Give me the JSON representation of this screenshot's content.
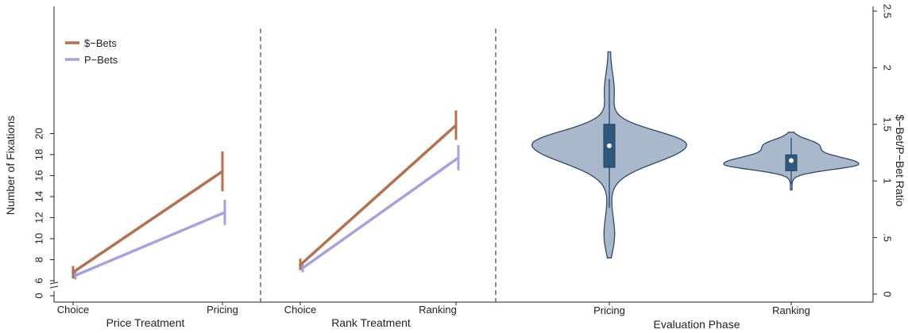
{
  "chart_data": [
    {
      "type": "line",
      "xlabel": "Price Treatment",
      "ylabel": "Number of Fixations",
      "categories": [
        "Choice",
        "Pricing"
      ],
      "ylim": [
        0,
        22
      ],
      "y_axis_break": true,
      "y_ticks": [
        0,
        6,
        8,
        10,
        12,
        14,
        16,
        18,
        20
      ],
      "series": [
        {
          "name": "$−Bets",
          "color": "#b5714c",
          "values": [
            6.8,
            16.4
          ],
          "ci_low": [
            6.2,
            14.5
          ],
          "ci_high": [
            7.4,
            18.3
          ]
        },
        {
          "name": "P−Bets",
          "color": "#a8a0e0",
          "values": [
            6.5,
            12.5
          ],
          "ci_low": [
            6.1,
            11.3
          ],
          "ci_high": [
            6.9,
            13.7
          ]
        }
      ],
      "legend": "top-left"
    },
    {
      "type": "line",
      "xlabel": "Rank Treatment",
      "categories": [
        "Choice",
        "Ranking"
      ],
      "ylim": [
        0,
        22
      ],
      "series": [
        {
          "name": "$−Bets",
          "color": "#b5714c",
          "values": [
            7.5,
            20.8
          ],
          "ci_low": [
            7.0,
            19.4
          ],
          "ci_high": [
            8.1,
            22.2
          ]
        },
        {
          "name": "P−Bets",
          "color": "#a8a0e0",
          "values": [
            7.2,
            17.7
          ],
          "ci_low": [
            6.8,
            16.5
          ],
          "ci_high": [
            7.7,
            18.9
          ]
        }
      ]
    },
    {
      "type": "violin",
      "xlabel": "Evaluation Phase",
      "ylabel": "$−Bet/P−Bet Ratio",
      "categories": [
        "Pricing",
        "Ranking"
      ],
      "ylim": [
        0,
        2.5
      ],
      "y_ticks": [
        0,
        0.5,
        1,
        1.5,
        2,
        2.5
      ],
      "y_tick_labels": [
        "0",
        ".5",
        "1",
        "1.5",
        "2",
        "2.5"
      ],
      "violins": [
        {
          "category": "Pricing",
          "min": 0.32,
          "max": 2.14,
          "q1": 1.12,
          "q3": 1.5,
          "median": 1.31,
          "whisker_low": 0.76,
          "whisker_high": 1.9,
          "modes": [
            1.32
          ],
          "max_width": 0.55
        },
        {
          "category": "Ranking",
          "min": 0.92,
          "max": 1.43,
          "q1": 1.09,
          "q3": 1.23,
          "median": 1.18,
          "whisker_low": 0.97,
          "whisker_high": 1.38,
          "modes": [
            1.15
          ],
          "max_width": 0.6
        }
      ],
      "fill": "#a9b8ca",
      "stroke": "#2c4a6e",
      "box_color": "#2f5880"
    }
  ]
}
